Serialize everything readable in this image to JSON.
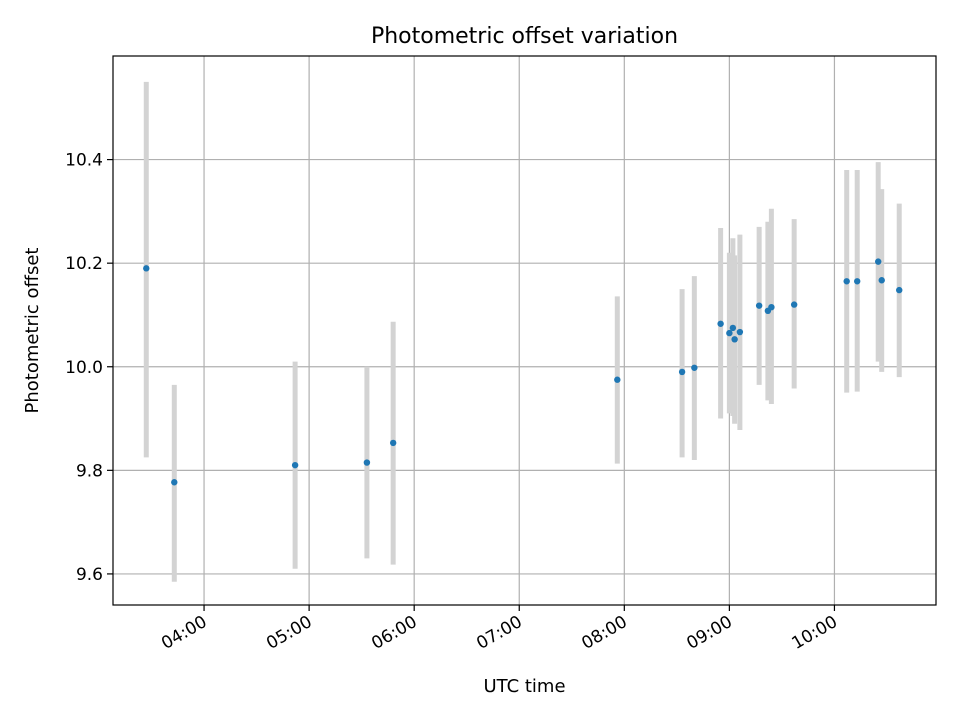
{
  "chart_data": {
    "type": "scatter",
    "title": "Photometric offset variation",
    "xlabel": "UTC time",
    "ylabel": "Photometric offset",
    "grid": true,
    "xlim": [
      "03:08",
      "10:58"
    ],
    "ylim": [
      9.54,
      10.6
    ],
    "x_ticks": [
      "04:00",
      "05:00",
      "06:00",
      "07:00",
      "08:00",
      "09:00",
      "10:00"
    ],
    "y_ticks": [
      9.6,
      9.8,
      10.0,
      10.2,
      10.4
    ],
    "colors": {
      "point": "#1f77b4",
      "errorbar": "#d3d3d3",
      "grid": "#b0b0b0",
      "axes": "#000000"
    },
    "points": [
      {
        "x": "03:27",
        "y": 10.19,
        "y_low": 9.825,
        "y_high": 10.55
      },
      {
        "x": "03:43",
        "y": 9.777,
        "y_low": 9.585,
        "y_high": 9.965
      },
      {
        "x": "04:52",
        "y": 9.81,
        "y_low": 9.61,
        "y_high": 10.01
      },
      {
        "x": "05:33",
        "y": 9.815,
        "y_low": 9.63,
        "y_high": 10.0
      },
      {
        "x": "05:48",
        "y": 9.853,
        "y_low": 9.618,
        "y_high": 10.087
      },
      {
        "x": "07:56",
        "y": 9.975,
        "y_low": 9.813,
        "y_high": 10.136
      },
      {
        "x": "08:33",
        "y": 9.99,
        "y_low": 9.825,
        "y_high": 10.15
      },
      {
        "x": "08:40",
        "y": 9.998,
        "y_low": 9.82,
        "y_high": 10.175
      },
      {
        "x": "08:55",
        "y": 10.083,
        "y_low": 9.9,
        "y_high": 10.268
      },
      {
        "x": "09:00",
        "y": 10.065,
        "y_low": 9.91,
        "y_high": 10.22
      },
      {
        "x": "09:02",
        "y": 10.075,
        "y_low": 9.905,
        "y_high": 10.248
      },
      {
        "x": "09:03",
        "y": 10.053,
        "y_low": 9.89,
        "y_high": 10.215
      },
      {
        "x": "09:06",
        "y": 10.067,
        "y_low": 9.878,
        "y_high": 10.255
      },
      {
        "x": "09:17",
        "y": 10.118,
        "y_low": 9.965,
        "y_high": 10.27
      },
      {
        "x": "09:22",
        "y": 10.108,
        "y_low": 9.935,
        "y_high": 10.28
      },
      {
        "x": "09:24",
        "y": 10.115,
        "y_low": 9.928,
        "y_high": 10.305
      },
      {
        "x": "09:37",
        "y": 10.12,
        "y_low": 9.958,
        "y_high": 10.285
      },
      {
        "x": "10:07",
        "y": 10.165,
        "y_low": 9.95,
        "y_high": 10.38
      },
      {
        "x": "10:13",
        "y": 10.165,
        "y_low": 9.952,
        "y_high": 10.38
      },
      {
        "x": "10:25",
        "y": 10.203,
        "y_low": 10.01,
        "y_high": 10.395
      },
      {
        "x": "10:27",
        "y": 10.167,
        "y_low": 9.99,
        "y_high": 10.343
      },
      {
        "x": "10:37",
        "y": 10.148,
        "y_low": 9.98,
        "y_high": 10.315
      }
    ]
  }
}
